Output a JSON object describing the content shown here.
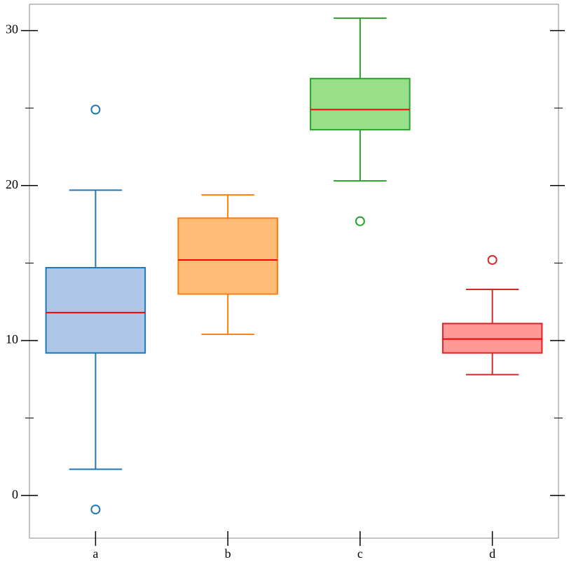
{
  "chart_data": {
    "type": "box",
    "categories": [
      "a",
      "b",
      "c",
      "d"
    ],
    "boxes": [
      {
        "whislo": 1.7,
        "q1": 9.2,
        "med": 11.8,
        "q3": 14.7,
        "whishi": 19.7,
        "fliers": [
          24.9,
          -0.9
        ],
        "color": "#1f77b4",
        "fill": "#aec7e8"
      },
      {
        "whislo": 10.4,
        "q1": 13.0,
        "med": 15.2,
        "q3": 17.9,
        "whishi": 19.4,
        "fliers": [],
        "color": "#ff7f0e",
        "fill": "#ffbb78"
      },
      {
        "whislo": 20.3,
        "q1": 23.6,
        "med": 24.9,
        "q3": 26.9,
        "whishi": 30.8,
        "fliers": [
          17.7
        ],
        "color": "#2ca02c",
        "fill": "#98df8a"
      },
      {
        "whislo": 7.8,
        "q1": 9.2,
        "med": 10.1,
        "q3": 11.1,
        "whishi": 13.3,
        "fliers": [
          15.2
        ],
        "color": "#d62728",
        "fill": "#ff9896"
      }
    ],
    "median_color": "#ff0000",
    "ylim": [
      -2.75,
      31.7
    ],
    "yticks": [
      0,
      10,
      20,
      30
    ],
    "y_minor_ticks": [
      5,
      15,
      25
    ]
  }
}
